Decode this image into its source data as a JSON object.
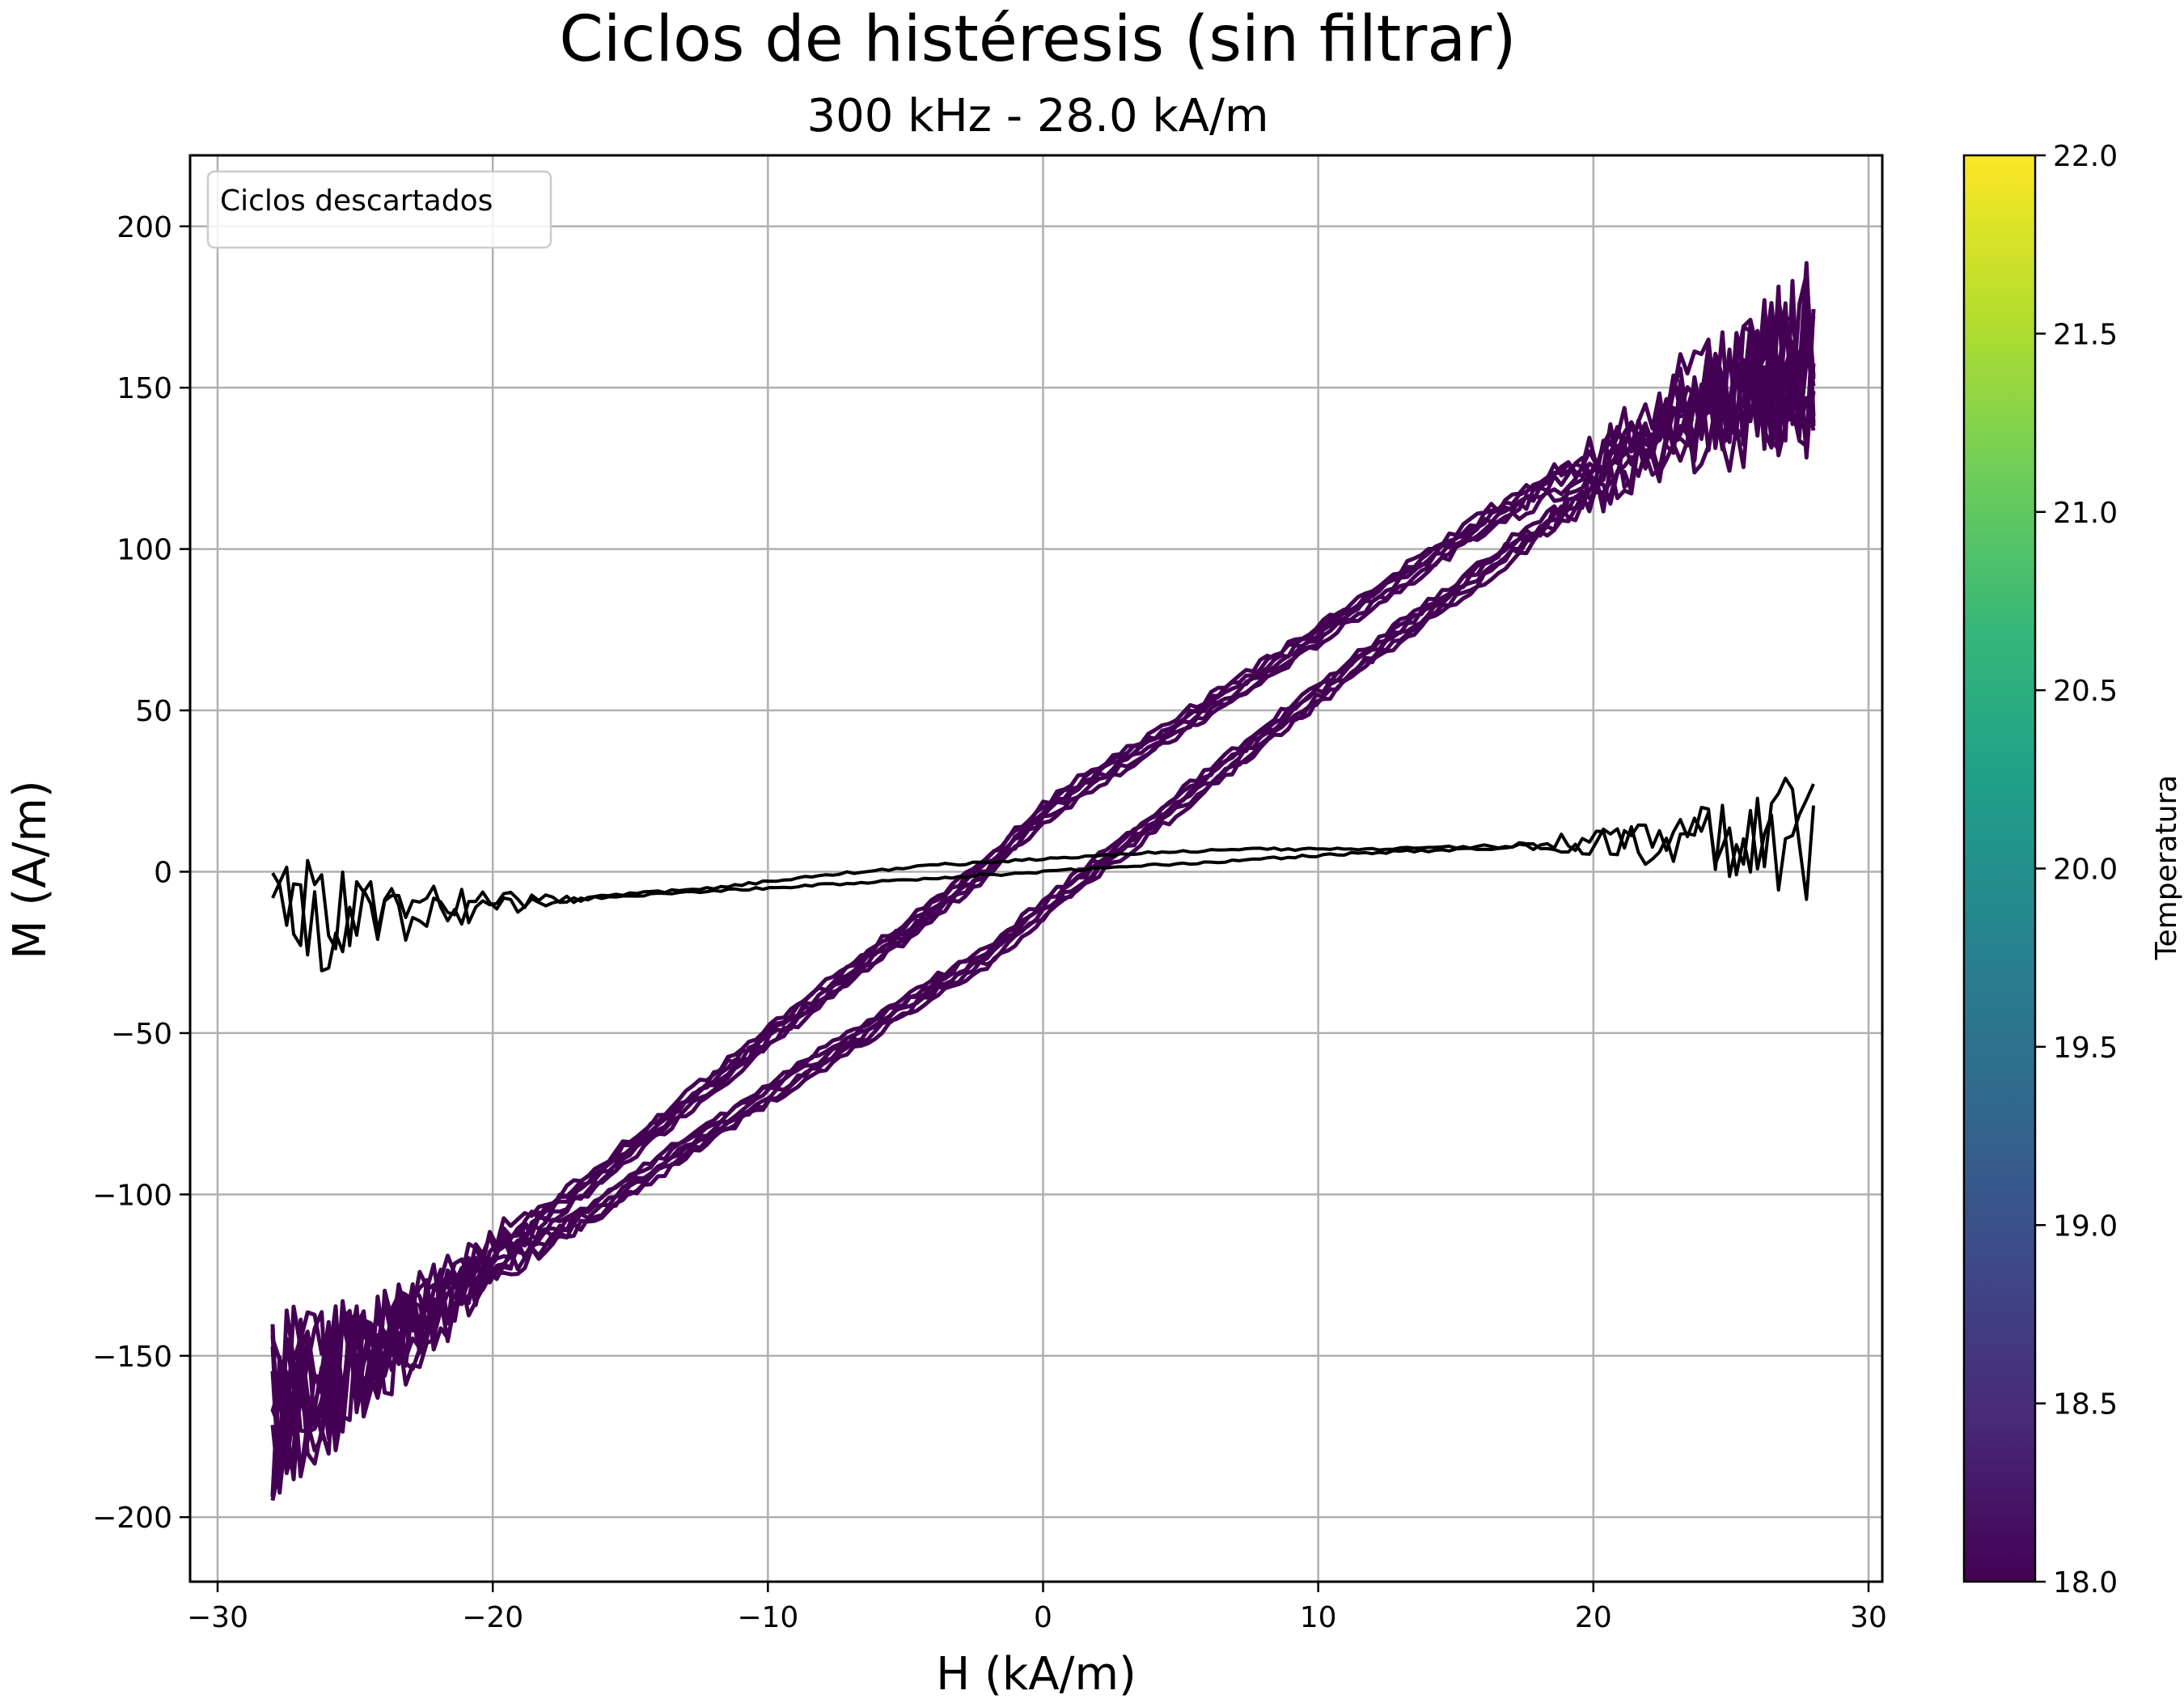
{
  "chart_data": {
    "type": "line",
    "title": "Ciclos de histéresis (sin filtrar)",
    "subtitle": "300 kHz - 28.0 kA/m",
    "xlabel": "H (kA/m)",
    "ylabel": "M (A/m)",
    "xlim": [
      -31,
      30.5
    ],
    "ylim": [
      -220,
      222
    ],
    "x_ticks": [
      -30,
      -20,
      -10,
      0,
      10,
      20,
      30
    ],
    "x_tick_labels": [
      "−30",
      "−20",
      "−10",
      "0",
      "10",
      "20",
      "30"
    ],
    "y_ticks": [
      -200,
      -150,
      -100,
      -50,
      0,
      50,
      100,
      150,
      200
    ],
    "y_tick_labels": [
      "−200",
      "−150",
      "−100",
      "−50",
      "0",
      "50",
      "100",
      "150",
      "200"
    ],
    "grid": true,
    "legend": {
      "placement": "top-left",
      "entries": [
        "Ciclos descartados"
      ]
    },
    "colorbar": {
      "label": "Temperatura",
      "range": [
        18.0,
        22.0
      ],
      "ticks": [
        18.0,
        18.5,
        19.0,
        19.5,
        20.0,
        20.5,
        21.0,
        21.5,
        22.0
      ],
      "tick_labels": [
        "18.0",
        "18.5",
        "19.0",
        "19.5",
        "20.0",
        "20.5",
        "21.0",
        "21.5",
        "22.0"
      ],
      "colormap": "viridis",
      "colors": [
        "#440154",
        "#482878",
        "#3e4989",
        "#31688e",
        "#26828e",
        "#1f9e89",
        "#35b779",
        "#6ece58",
        "#b5de2b",
        "#fde725"
      ]
    },
    "series": [
      {
        "color": "#440154",
        "upper_branch": {
          "x": [
            -28,
            -24,
            -20,
            -16,
            -12,
            -8,
            -4,
            -2,
            0,
            2,
            4,
            8,
            12,
            16,
            20,
            24,
            28
          ],
          "y": [
            -168,
            -145,
            -118,
            -93,
            -65,
            -38,
            -12,
            2,
            18,
            30,
            40,
            62,
            85,
            108,
            128,
            148,
            160
          ]
        },
        "lower_branch": {
          "x": [
            28,
            24,
            20,
            16,
            12,
            8,
            4,
            2,
            0,
            -2,
            -4,
            -8,
            -12,
            -16,
            -20,
            -24,
            -28
          ],
          "y": [
            160,
            142,
            118,
            93,
            68,
            42,
            15,
            2,
            -12,
            -26,
            -36,
            -58,
            -80,
            -103,
            -124,
            -148,
            -168
          ]
        },
        "noise_amplitude_at_ends": 30
      },
      {
        "color": "#000000",
        "upper_branch": {
          "x": [
            -28,
            -20,
            -12,
            -8,
            -4,
            0,
            4,
            8,
            12,
            16,
            20,
            24,
            28
          ],
          "y": [
            -15,
            -10,
            -5,
            -1,
            2,
            4,
            6,
            7,
            7,
            8,
            9,
            10,
            10
          ]
        },
        "lower_branch": {
          "x": [
            28,
            20,
            16,
            12,
            8,
            4,
            0,
            -4,
            -8,
            -12,
            -16,
            -20,
            -24,
            -28
          ],
          "y": [
            10,
            9,
            7,
            6,
            4,
            2,
            0,
            -2,
            -4,
            -6,
            -8,
            -10,
            -13,
            -16
          ]
        },
        "noise_amplitude_at_ends": 22
      }
    ]
  }
}
